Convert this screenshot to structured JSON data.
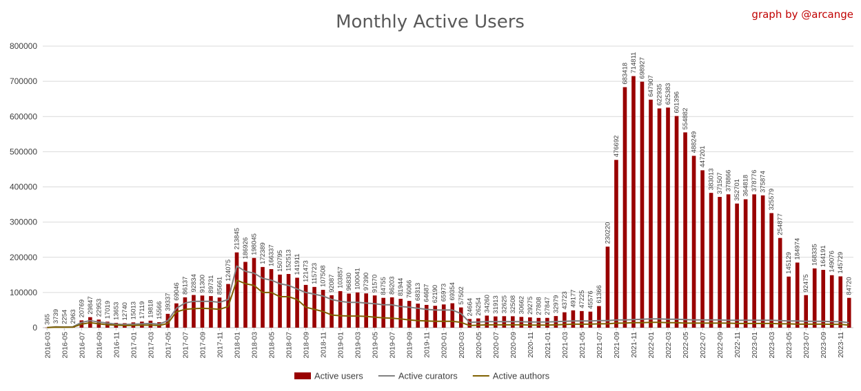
{
  "chart_data": {
    "type": "bar",
    "title": "Monthly Active Users",
    "credit": "graph by @arcange",
    "xlabel": "",
    "ylabel": "",
    "ylim": [
      0,
      800000
    ],
    "yticks": [
      0,
      100000,
      200000,
      300000,
      400000,
      500000,
      600000,
      700000,
      800000
    ],
    "grid": true,
    "legend_position": "bottom",
    "colors": {
      "bars": "#990000",
      "curators": "#808080",
      "authors": "#7f6000"
    },
    "categories": [
      "2016-03",
      "2016-04",
      "2016-05",
      "2016-06",
      "2016-07",
      "2016-08",
      "2016-09",
      "2016-10",
      "2016-11",
      "2016-12",
      "2017-01",
      "2017-02",
      "2017-03",
      "2017-04",
      "2017-05",
      "2017-06",
      "2017-07",
      "2017-08",
      "2017-09",
      "2017-10",
      "2017-11",
      "2017-12",
      "2018-01",
      "2018-02",
      "2018-03",
      "2018-04",
      "2018-05",
      "2018-06",
      "2018-07",
      "2018-08",
      "2018-09",
      "2018-10",
      "2018-11",
      "2018-12",
      "2019-01",
      "2019-02",
      "2019-03",
      "2019-04",
      "2019-05",
      "2019-06",
      "2019-07",
      "2019-08",
      "2019-09",
      "2019-10",
      "2019-11",
      "2019-12",
      "2020-01",
      "2020-02",
      "2020-03",
      "2020-04",
      "2020-05",
      "2020-06",
      "2020-07",
      "2020-08",
      "2020-09",
      "2020-10",
      "2020-11",
      "2020-12",
      "2021-01",
      "2021-02",
      "2021-03",
      "2021-04",
      "2021-05",
      "2021-06",
      "2021-07",
      "2021-08",
      "2021-09",
      "2021-10",
      "2021-11",
      "2021-12",
      "2022-01",
      "2022-02",
      "2022-03",
      "2022-04",
      "2022-05",
      "2022-06",
      "2022-07",
      "2022-08",
      "2022-09",
      "2022-10",
      "2022-11",
      "2022-12",
      "2023-01",
      "2023-02",
      "2023-03",
      "2023-04",
      "2023-05",
      "2023-06",
      "2023-07",
      "2023-08",
      "2023-09",
      "2023-10",
      "2023-11",
      "2023-12"
    ],
    "x_tick_labels": [
      "2016-03",
      "2016-05",
      "2016-07",
      "2016-09",
      "2016-11",
      "2017-01",
      "2017-03",
      "2017-05",
      "2017-07",
      "2017-09",
      "2017-11",
      "2018-01",
      "2018-03",
      "2018-05",
      "2018-07",
      "2018-09",
      "2018-11",
      "2019-01",
      "2019-03",
      "2019-05",
      "2019-07",
      "2019-09",
      "2019-11",
      "2020-01",
      "2020-03",
      "2020-05",
      "2020-07",
      "2020-09",
      "2020-11",
      "2021-01",
      "2021-03",
      "2021-05",
      "2021-07",
      "2021-09",
      "2021-11",
      "2022-01",
      "2022-03",
      "2022-05",
      "2022-07",
      "2022-09",
      "2022-11",
      "2023-01",
      "2023-03",
      "2023-05",
      "2023-07",
      "2023-09",
      "2023-11"
    ],
    "series": [
      {
        "name": "Active users",
        "type": "bar",
        "values": [
          365,
          3739,
          2254,
          2963,
          20769,
          29847,
          22953,
          17019,
          13653,
          12740,
          15013,
          17119,
          19818,
          15566,
          39337,
          69046,
          86137,
          92834,
          91300,
          89731,
          85661,
          124075,
          213845,
          186926,
          198045,
          172389,
          166337,
          150795,
          152513,
          141911,
          121473,
          115723,
          107508,
          92087,
          103857,
          96830,
          100041,
          97390,
          91570,
          84755,
          86203,
          81944,
          76066,
          68313,
          64687,
          62190,
          65973,
          69354,
          57502,
          24664,
          26254,
          34260,
          31913,
          32625,
          32508,
          30662,
          29275,
          27808,
          27847,
          32979,
          43723,
          49177,
          47225,
          45576,
          61366,
          230220,
          476692,
          683418,
          714811,
          698927,
          647907,
          622935,
          625383,
          601396,
          554882,
          488249,
          447201,
          383013,
          371507,
          378866,
          352701,
          364818,
          378776,
          375874,
          325579,
          254877,
          145129,
          184974,
          92475,
          168335,
          164191,
          149076,
          145729,
          84720
        ]
      },
      {
        "name": "Active curators",
        "type": "line",
        "values": [
          300,
          2500,
          2000,
          2500,
          15000,
          20000,
          16000,
          13000,
          10000,
          9000,
          10000,
          11000,
          12000,
          10000,
          20000,
          55000,
          70000,
          75000,
          75000,
          75000,
          72000,
          80000,
          175000,
          160000,
          155000,
          140000,
          135000,
          125000,
          120000,
          110000,
          100000,
          95000,
          90000,
          80000,
          75000,
          72000,
          72000,
          70000,
          68000,
          65000,
          65000,
          60000,
          58000,
          55000,
          52000,
          50000,
          50000,
          50000,
          40000,
          15000,
          16000,
          17000,
          17000,
          17000,
          17000,
          17000,
          16000,
          16000,
          16000,
          17000,
          18000,
          19000,
          19000,
          19000,
          20000,
          20000,
          22000,
          22000,
          23000,
          24000,
          25000,
          25000,
          24000,
          24000,
          23000,
          22000,
          22000,
          22000,
          22000,
          21000,
          21000,
          21000,
          21000,
          21000,
          21000,
          20000,
          19000,
          19000,
          18000,
          18000,
          18000,
          17000,
          17000,
          14000
        ]
      },
      {
        "name": "Active authors",
        "type": "line",
        "values": [
          200,
          1500,
          1200,
          1500,
          10000,
          14000,
          11000,
          8500,
          7000,
          6000,
          6500,
          7000,
          7500,
          6000,
          12000,
          45000,
          52000,
          54000,
          55000,
          54000,
          52000,
          60000,
          135000,
          125000,
          120000,
          100000,
          100000,
          88000,
          88000,
          80000,
          58000,
          52000,
          46000,
          36000,
          34000,
          33000,
          33000,
          32000,
          30000,
          28000,
          27000,
          25000,
          22000,
          20000,
          19000,
          18000,
          18000,
          18000,
          15000,
          6000,
          7000,
          8000,
          8000,
          8000,
          8000,
          8000,
          7500,
          7500,
          7500,
          8000,
          9000,
          10000,
          10000,
          10000,
          11000,
          11000,
          13000,
          13000,
          14000,
          14000,
          15000,
          15000,
          14000,
          14000,
          13000,
          13000,
          13000,
          13000,
          13000,
          13000,
          12000,
          12000,
          12000,
          12000,
          12000,
          11000,
          11000,
          10000,
          10000,
          10000,
          10000,
          9500,
          9500,
          7000
        ]
      }
    ]
  }
}
